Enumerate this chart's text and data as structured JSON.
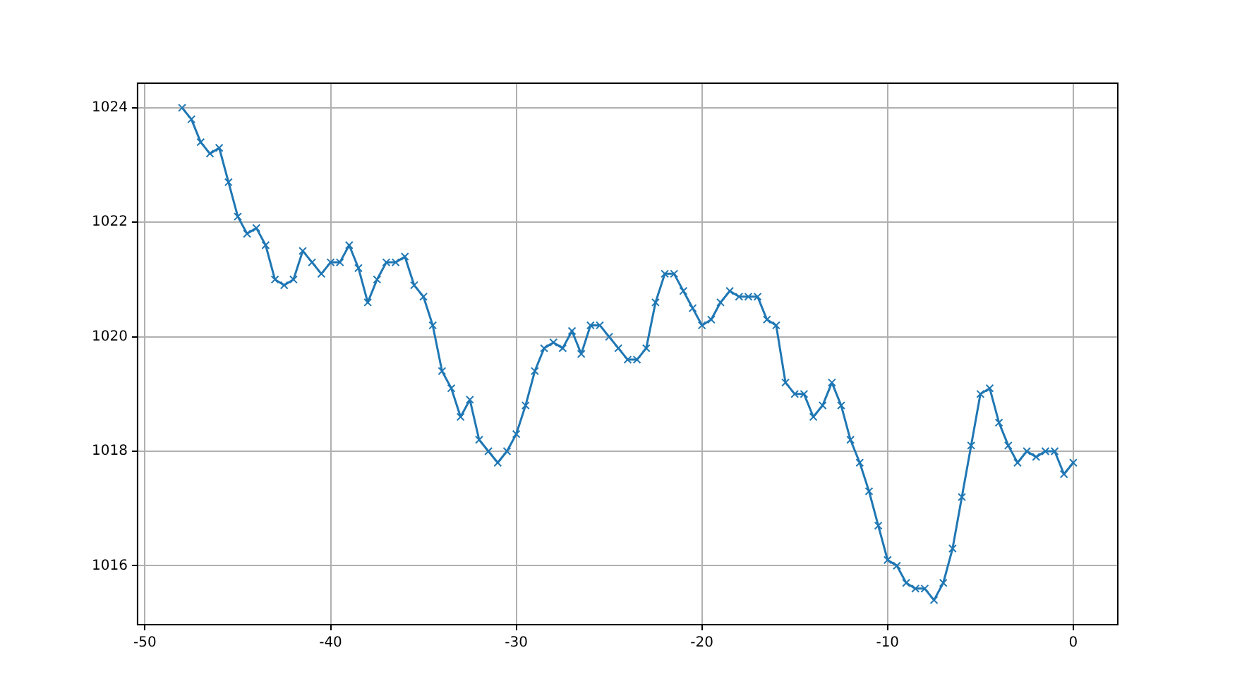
{
  "chart_data": {
    "type": "line",
    "x": [
      -48,
      -47.5,
      -47,
      -46.5,
      -46,
      -45.5,
      -45,
      -44.5,
      -44,
      -43.5,
      -43,
      -42.5,
      -42,
      -41.5,
      -41,
      -40.5,
      -40,
      -39.5,
      -39,
      -38.5,
      -38,
      -37.5,
      -37,
      -36.5,
      -36,
      -35.5,
      -35,
      -34.5,
      -34,
      -33.5,
      -33,
      -32.5,
      -32,
      -31.5,
      -31,
      -30.5,
      -30,
      -29.5,
      -29,
      -28.5,
      -28,
      -27.5,
      -27,
      -26.5,
      -26,
      -25.5,
      -25,
      -24.5,
      -24,
      -23.5,
      -23,
      -22.5,
      -22,
      -21.5,
      -21,
      -20.5,
      -20,
      -19.5,
      -19,
      -18.5,
      -18,
      -17.5,
      -17,
      -16.5,
      -16,
      -15.5,
      -15,
      -14.5,
      -14,
      -13.5,
      -13,
      -12.5,
      -12,
      -11.5,
      -11,
      -10.5,
      -10,
      -9.5,
      -9,
      -8.5,
      -8,
      -7.5,
      -7,
      -6.5,
      -6,
      -5.5,
      -5,
      -4.5,
      -4,
      -3.5,
      -3,
      -2.5,
      -2,
      -1.5,
      -1,
      -0.5,
      0
    ],
    "series": [
      {
        "color": "#1f77b4",
        "values": [
          1024.0,
          1023.8,
          1023.4,
          1023.2,
          1023.3,
          1022.7,
          1022.1,
          1021.8,
          1021.9,
          1021.6,
          1021.0,
          1020.9,
          1021.0,
          1021.5,
          1021.3,
          1021.1,
          1021.3,
          1021.3,
          1021.6,
          1021.2,
          1020.6,
          1021.0,
          1021.3,
          1021.3,
          1021.4,
          1020.9,
          1020.7,
          1020.2,
          1019.4,
          1019.1,
          1018.6,
          1018.9,
          1018.2,
          1018.0,
          1017.8,
          1018.0,
          1018.3,
          1018.8,
          1019.4,
          1019.8,
          1019.9,
          1019.8,
          1020.1,
          1019.7,
          1020.2,
          1020.2,
          1020.0,
          1019.8,
          1019.6,
          1019.6,
          1019.8,
          1020.6,
          1021.1,
          1021.1,
          1020.8,
          1020.5,
          1020.2,
          1020.3,
          1020.6,
          1020.8,
          1020.7,
          1020.7,
          1020.7,
          1020.3,
          1020.2,
          1019.2,
          1019.0,
          1019.0,
          1018.6,
          1018.8,
          1019.2,
          1018.8,
          1018.2,
          1017.8,
          1017.3,
          1016.7,
          1016.1,
          1016.0,
          1015.7,
          1015.6,
          1015.6,
          1015.4,
          1015.7,
          1016.3,
          1017.2,
          1018.1,
          1019.0,
          1019.1,
          1018.5,
          1018.1,
          1017.8,
          1018.0,
          1017.9,
          1018.0,
          1018.0,
          1017.6,
          1017.8
        ]
      }
    ],
    "xlim": [
      -50.4,
      2.4
    ],
    "ylim": [
      1014.97,
      1024.43
    ],
    "xticks": [
      -50,
      -40,
      -30,
      -20,
      -10,
      0
    ],
    "yticks": [
      1016,
      1018,
      1020,
      1022,
      1024
    ],
    "grid": true,
    "marker": "cross",
    "line_style": "solid"
  }
}
